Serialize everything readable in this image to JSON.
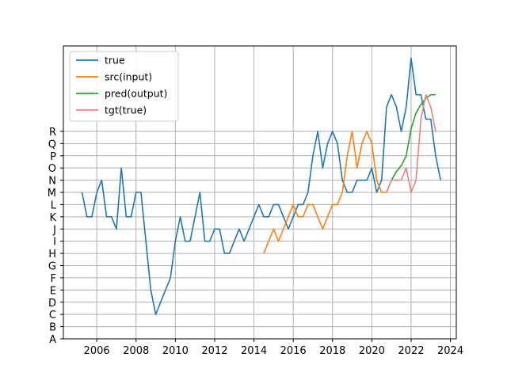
{
  "chart_data": {
    "type": "line",
    "grid": true,
    "legend_position": "top-left",
    "xlim": [
      2004.3,
      2024.3
    ],
    "ylim": [
      0,
      24
    ],
    "x_ticks": [
      2006,
      2008,
      2010,
      2012,
      2014,
      2016,
      2018,
      2020,
      2022,
      2024
    ],
    "y_tick_labels": [
      "A",
      "B",
      "C",
      "D",
      "E",
      "F",
      "G",
      "H",
      "I",
      "J",
      "K",
      "L",
      "M",
      "N",
      "O",
      "P",
      "Q",
      "R"
    ],
    "series": [
      {
        "name": "true",
        "color": "#1f77b4",
        "x": [
          2005.25,
          2005.5,
          2005.75,
          2006.0,
          2006.25,
          2006.5,
          2006.75,
          2007.0,
          2007.25,
          2007.5,
          2007.75,
          2008.0,
          2008.25,
          2008.5,
          2008.75,
          2009.0,
          2009.25,
          2009.5,
          2009.75,
          2010.0,
          2010.25,
          2010.5,
          2010.75,
          2011.0,
          2011.25,
          2011.5,
          2011.75,
          2012.0,
          2012.25,
          2012.5,
          2012.75,
          2013.0,
          2013.25,
          2013.5,
          2013.75,
          2014.0,
          2014.25,
          2014.5,
          2014.75,
          2015.0,
          2015.25,
          2015.5,
          2015.75,
          2016.0,
          2016.25,
          2016.5,
          2016.75,
          2017.0,
          2017.25,
          2017.5,
          2017.75,
          2018.0,
          2018.25,
          2018.5,
          2018.75,
          2019.0,
          2019.25,
          2019.5,
          2019.75,
          2020.0,
          2020.25,
          2020.5,
          2020.75,
          2021.0,
          2021.25,
          2021.5,
          2021.75,
          2022.0,
          2022.25,
          2022.5,
          2022.75,
          2023.0,
          2023.25,
          2023.5
        ],
        "y": [
          12,
          10,
          10,
          12,
          13,
          10,
          10,
          9,
          14,
          10,
          10,
          12,
          12,
          8,
          4,
          2,
          3,
          4,
          5,
          8,
          10,
          8,
          8,
          10,
          12,
          8,
          8,
          9,
          9,
          7,
          7,
          8,
          9,
          8,
          9,
          10,
          11,
          10,
          10,
          11,
          11,
          10,
          9,
          10,
          11,
          11,
          12,
          15,
          17,
          14,
          16,
          17,
          16,
          13,
          12,
          12,
          13,
          13,
          13,
          14,
          12,
          13,
          19,
          20,
          19,
          17,
          19,
          23,
          20,
          20,
          18,
          18,
          15,
          13
        ]
      },
      {
        "name": "src(input)",
        "color": "#ff7f0e",
        "x": [
          2014.5,
          2014.75,
          2015.0,
          2015.25,
          2015.5,
          2015.75,
          2016.0,
          2016.25,
          2016.5,
          2016.75,
          2017.0,
          2017.25,
          2017.5,
          2017.75,
          2018.0,
          2018.25,
          2018.5,
          2018.75,
          2019.0,
          2019.25,
          2019.5,
          2019.75,
          2020.0,
          2020.25,
          2020.5,
          2020.75
        ],
        "y": [
          7,
          8,
          9,
          8,
          9,
          10,
          11,
          10,
          10,
          11,
          11,
          10,
          9,
          10,
          11,
          11,
          12,
          15,
          17,
          14,
          16,
          17,
          16,
          13,
          12,
          12
        ]
      },
      {
        "name": "pred(output)",
        "color": "#2ca02c",
        "x": [
          2020.75,
          2021.0,
          2021.25,
          2021.5,
          2021.75,
          2022.0,
          2022.25,
          2022.5,
          2022.75,
          2023.0,
          2023.25
        ],
        "y": [
          12,
          13,
          13.7,
          14.2,
          15,
          17.2,
          18.5,
          19.2,
          19.7,
          20,
          20
        ]
      },
      {
        "name": "tgt(true)",
        "color": "#f08080",
        "x": [
          2020.75,
          2021.0,
          2021.25,
          2021.5,
          2021.75,
          2022.0,
          2022.25,
          2022.5,
          2022.75,
          2023.0,
          2023.25
        ],
        "y": [
          12,
          13,
          13,
          13,
          14,
          12,
          13,
          18,
          20,
          19,
          17
        ]
      }
    ]
  }
}
